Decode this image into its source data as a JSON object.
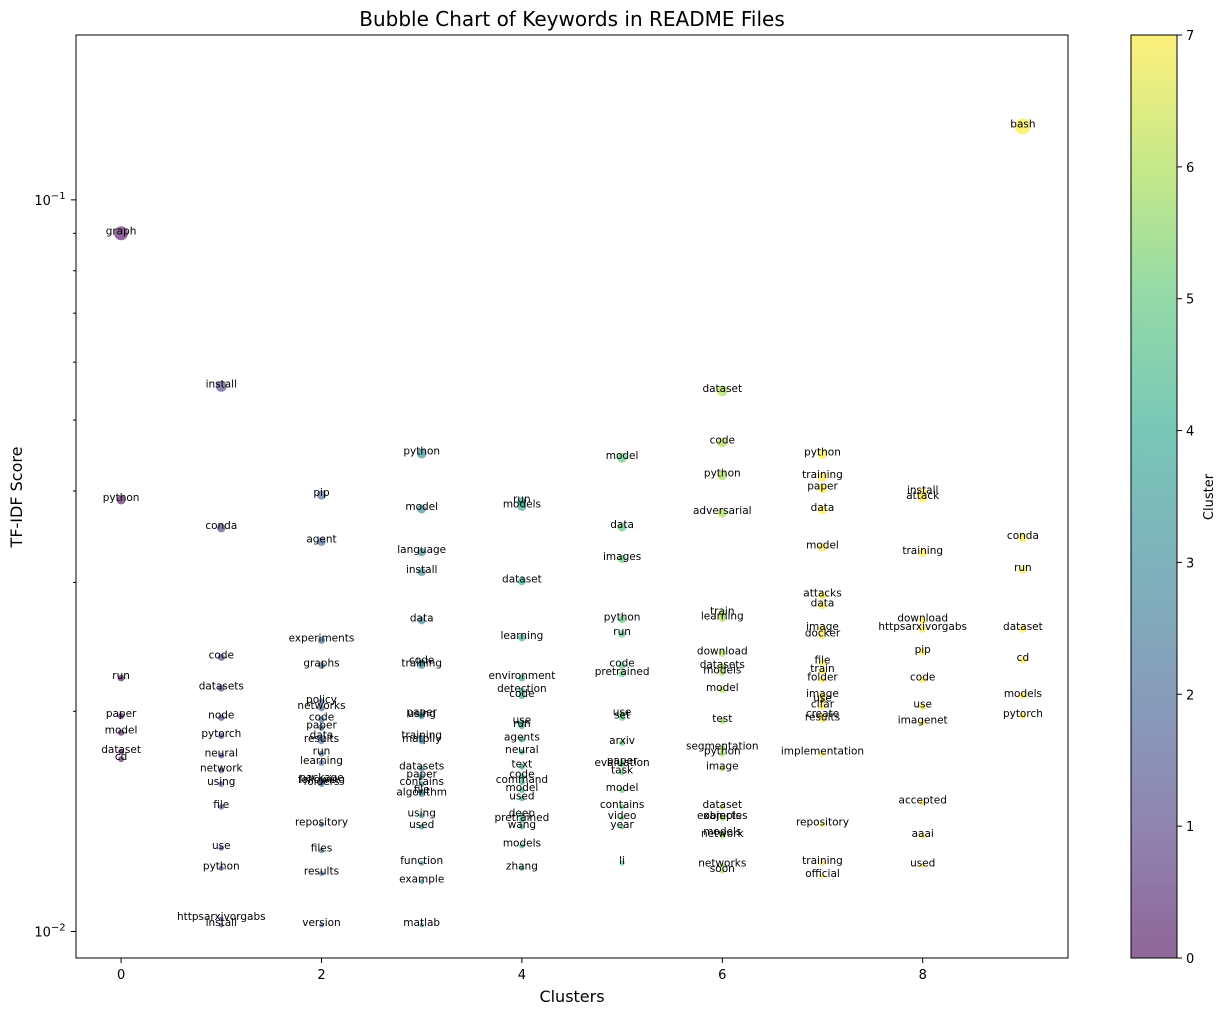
{
  "chart_data": {
    "type": "scatter",
    "title": "Bubble Chart of Keywords in README Files",
    "xlabel": "Clusters",
    "ylabel": "TF-IDF Score",
    "yscale": "log",
    "xlim": [
      -0.45,
      9.45
    ],
    "ylim": [
      0.0092,
      0.168
    ],
    "x_ticks": [
      0,
      2,
      4,
      6,
      8
    ],
    "y_ticks": [
      {
        "value": 0.1,
        "base": "10",
        "exp": "−1"
      },
      {
        "value": 0.01,
        "base": "10",
        "exp": "−2"
      }
    ],
    "colorbar": {
      "label": "Cluster",
      "min": 0,
      "max": 7,
      "ticks": [
        0,
        1,
        2,
        3,
        4,
        5,
        6,
        7
      ],
      "colormap": "viridis"
    },
    "point_opacity": 0.6,
    "series": [
      {
        "cluster": 0,
        "points": [
          [
            "graph",
            0.09
          ],
          [
            "python",
            0.0389
          ],
          [
            "run",
            0.0222
          ],
          [
            "paper",
            0.0197
          ],
          [
            "model",
            0.0187
          ],
          [
            "dataset",
            0.0176
          ],
          [
            "cd",
            0.0172
          ]
        ]
      },
      {
        "cluster": 1,
        "points": [
          [
            "install",
            0.0556
          ],
          [
            "conda",
            0.0356
          ],
          [
            "code",
            0.0237
          ],
          [
            "datasets",
            0.0215
          ],
          [
            "node",
            0.0196
          ],
          [
            "pytorch",
            0.0185
          ],
          [
            "neural",
            0.0174
          ],
          [
            "network",
            0.0166
          ],
          [
            "using",
            0.0159
          ],
          [
            "file",
            0.0148
          ],
          [
            "use",
            0.013
          ],
          [
            "python",
            0.0122
          ],
          [
            "httpsarxivorgabs",
            0.0104
          ],
          [
            "install",
            0.0102
          ]
        ]
      },
      {
        "cluster": 2,
        "points": [
          [
            "pip",
            0.0395
          ],
          [
            "agent",
            0.0341
          ],
          [
            "experiments",
            0.025
          ],
          [
            "graphs",
            0.0231
          ],
          [
            "policy",
            0.0206
          ],
          [
            "networks",
            0.0202
          ],
          [
            "code",
            0.0195
          ],
          [
            "paper",
            0.019
          ],
          [
            "data",
            0.0184
          ],
          [
            "results",
            0.0182
          ],
          [
            "run",
            0.0175
          ],
          [
            "learning",
            0.017
          ],
          [
            "package",
            0.0161
          ],
          [
            "following",
            0.016
          ],
          [
            "folders",
            0.0159
          ],
          [
            "repository",
            0.014
          ],
          [
            "files",
            0.0129
          ],
          [
            "results",
            0.012
          ],
          [
            "version",
            0.0102
          ]
        ]
      },
      {
        "cluster": 3,
        "points": [
          [
            "python",
            0.045
          ],
          [
            "model",
            0.0378
          ],
          [
            "language",
            0.033
          ],
          [
            "install",
            0.031
          ],
          [
            "data",
            0.0266
          ],
          [
            "code",
            0.0233
          ],
          [
            "training",
            0.0231
          ],
          [
            "paper",
            0.0198
          ],
          [
            "using",
            0.0197
          ],
          [
            "training",
            0.0184
          ],
          [
            "matplly",
            0.0182
          ],
          [
            "datasets",
            0.0167
          ],
          [
            "paper",
            0.0163
          ],
          [
            "contains",
            0.0159
          ],
          [
            "file",
            0.0155
          ],
          [
            "algorithm",
            0.0154
          ],
          [
            "using",
            0.0144
          ],
          [
            "used",
            0.0139
          ],
          [
            "function",
            0.0124
          ],
          [
            "example",
            0.0117
          ],
          [
            "matlab",
            0.0102
          ]
        ]
      },
      {
        "cluster": 4,
        "points": [
          [
            "run",
            0.0387
          ],
          [
            "models",
            0.0381
          ],
          [
            "dataset",
            0.0301
          ],
          [
            "learning",
            0.0252
          ],
          [
            "environment",
            0.0222
          ],
          [
            "detection",
            0.0213
          ],
          [
            "code",
            0.021
          ],
          [
            "use",
            0.0193
          ],
          [
            "run",
            0.0191
          ],
          [
            "agents",
            0.0183
          ],
          [
            "neural",
            0.0176
          ],
          [
            "text",
            0.0168
          ],
          [
            "code",
            0.0163
          ],
          [
            "command",
            0.016
          ],
          [
            "model",
            0.0156
          ],
          [
            "used",
            0.0152
          ],
          [
            "deep",
            0.0144
          ],
          [
            "pretrained",
            0.0142
          ],
          [
            "wang",
            0.0139
          ],
          [
            "models",
            0.0131
          ],
          [
            "zhang",
            0.0122
          ]
        ]
      },
      {
        "cluster": 5,
        "points": [
          [
            "model",
            0.0444
          ],
          [
            "data",
            0.0357
          ],
          [
            "images",
            0.0323
          ],
          [
            "python",
            0.0267
          ],
          [
            "run",
            0.0255
          ],
          [
            "code",
            0.0231
          ],
          [
            "pretrained",
            0.0225
          ],
          [
            "use",
            0.0198
          ],
          [
            "set",
            0.0196
          ],
          [
            "arxiv",
            0.0181
          ],
          [
            "paper",
            0.017
          ],
          [
            "evaluation",
            0.0169
          ],
          [
            "task",
            0.0165
          ],
          [
            "model",
            0.0156
          ],
          [
            "contains",
            0.0148
          ],
          [
            "video",
            0.0143
          ],
          [
            "year",
            0.0139
          ],
          [
            "li",
            0.0124
          ]
        ]
      },
      {
        "cluster": 6,
        "points": [
          [
            "dataset",
            0.0548
          ],
          [
            "code",
            0.0466
          ],
          [
            "python",
            0.042
          ],
          [
            "adversarial",
            0.0373
          ],
          [
            "train",
            0.0272
          ],
          [
            "learning",
            0.0268
          ],
          [
            "download",
            0.024
          ],
          [
            "datasets",
            0.023
          ],
          [
            "models",
            0.0226
          ],
          [
            "model",
            0.0214
          ],
          [
            "test",
            0.0194
          ],
          [
            "segmentation",
            0.0178
          ],
          [
            "python",
            0.0175
          ],
          [
            "image",
            0.0167
          ],
          [
            "dataset",
            0.0148
          ],
          [
            "objects",
            0.0143
          ],
          [
            "examples",
            0.0143
          ],
          [
            "models",
            0.0136
          ],
          [
            "network",
            0.0135
          ],
          [
            "networks",
            0.0123
          ],
          [
            "soon",
            0.0121
          ]
        ]
      },
      {
        "cluster": 7,
        "points": [
          [
            "python",
            0.0449
          ],
          [
            "training",
            0.0418
          ],
          [
            "paper",
            0.0403
          ],
          [
            "data",
            0.0377
          ],
          [
            "model",
            0.0335
          ],
          [
            "attacks",
            0.0288
          ],
          [
            "data",
            0.0279
          ],
          [
            "image",
            0.0259
          ],
          [
            "docker",
            0.0254
          ],
          [
            "file",
            0.0233
          ],
          [
            "train",
            0.0227
          ],
          [
            "folder",
            0.0221
          ],
          [
            "image",
            0.021
          ],
          [
            "use",
            0.0207
          ],
          [
            "cifar",
            0.0203
          ],
          [
            "create",
            0.0197
          ],
          [
            "results",
            0.0195
          ],
          [
            "implementation",
            0.0175
          ],
          [
            "repository",
            0.014
          ],
          [
            "training",
            0.0124
          ],
          [
            "official",
            0.0119
          ]
        ]
      },
      {
        "cluster": 8,
        "points": [
          [
            "install",
            0.0398
          ],
          [
            "attack",
            0.0391
          ],
          [
            "training",
            0.0329
          ],
          [
            "download",
            0.0266
          ],
          [
            "httpsarxivorgabs",
            0.0259
          ],
          [
            "pip",
            0.0241
          ],
          [
            "code",
            0.0221
          ],
          [
            "use",
            0.0203
          ],
          [
            "imagenet",
            0.0193
          ],
          [
            "accepted",
            0.015
          ],
          [
            "aaai",
            0.0135
          ],
          [
            "used",
            0.0123
          ]
        ]
      },
      {
        "cluster": 9,
        "points": [
          [
            "bash",
            0.126
          ],
          [
            "conda",
            0.0345
          ],
          [
            "run",
            0.0312
          ],
          [
            "dataset",
            0.0259
          ],
          [
            "cd",
            0.0235
          ],
          [
            "models",
            0.021
          ],
          [
            "pytorch",
            0.0197
          ]
        ]
      }
    ]
  }
}
